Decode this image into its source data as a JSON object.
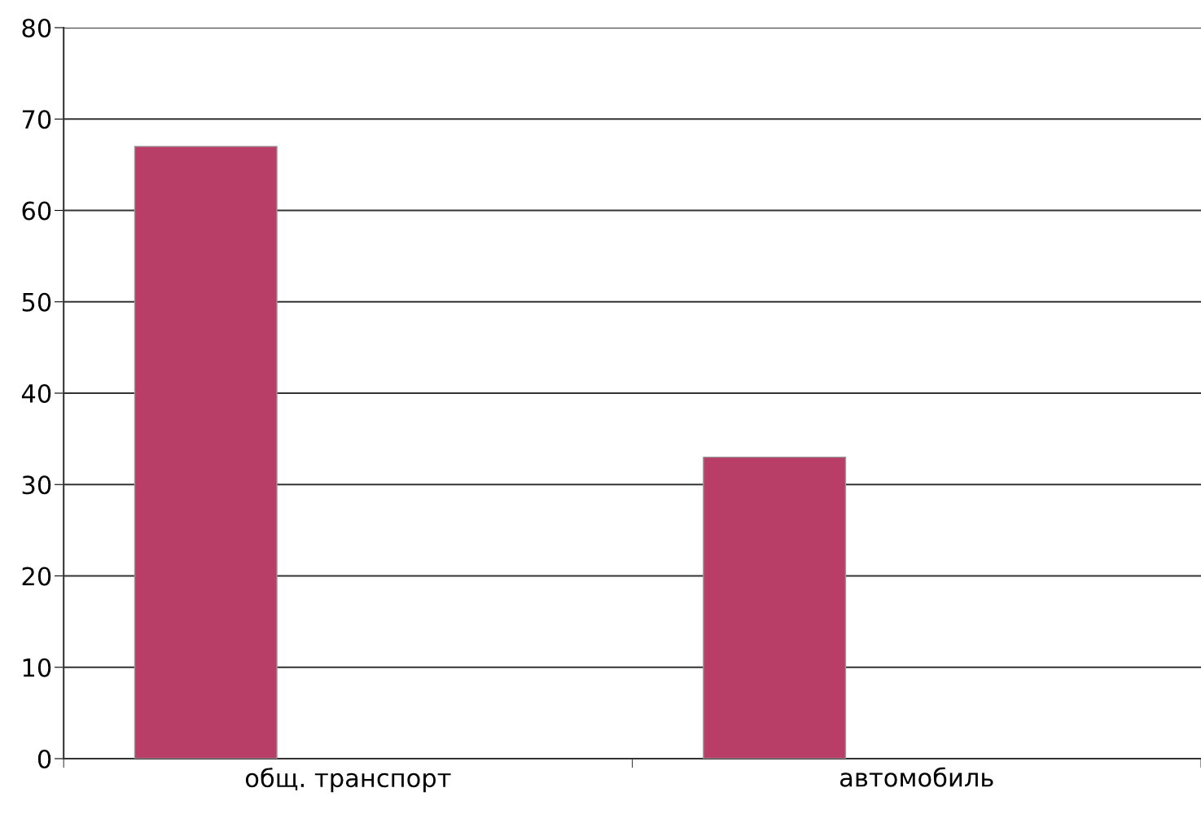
{
  "chart_data": {
    "type": "bar",
    "categories": [
      "общ. транспорт",
      "автомобиль"
    ],
    "values": [
      67,
      33
    ],
    "color": "#b83e67",
    "ylim": [
      0,
      80
    ],
    "yticks": [
      0,
      10,
      20,
      30,
      40,
      50,
      60,
      70,
      80
    ],
    "grid": "y"
  }
}
